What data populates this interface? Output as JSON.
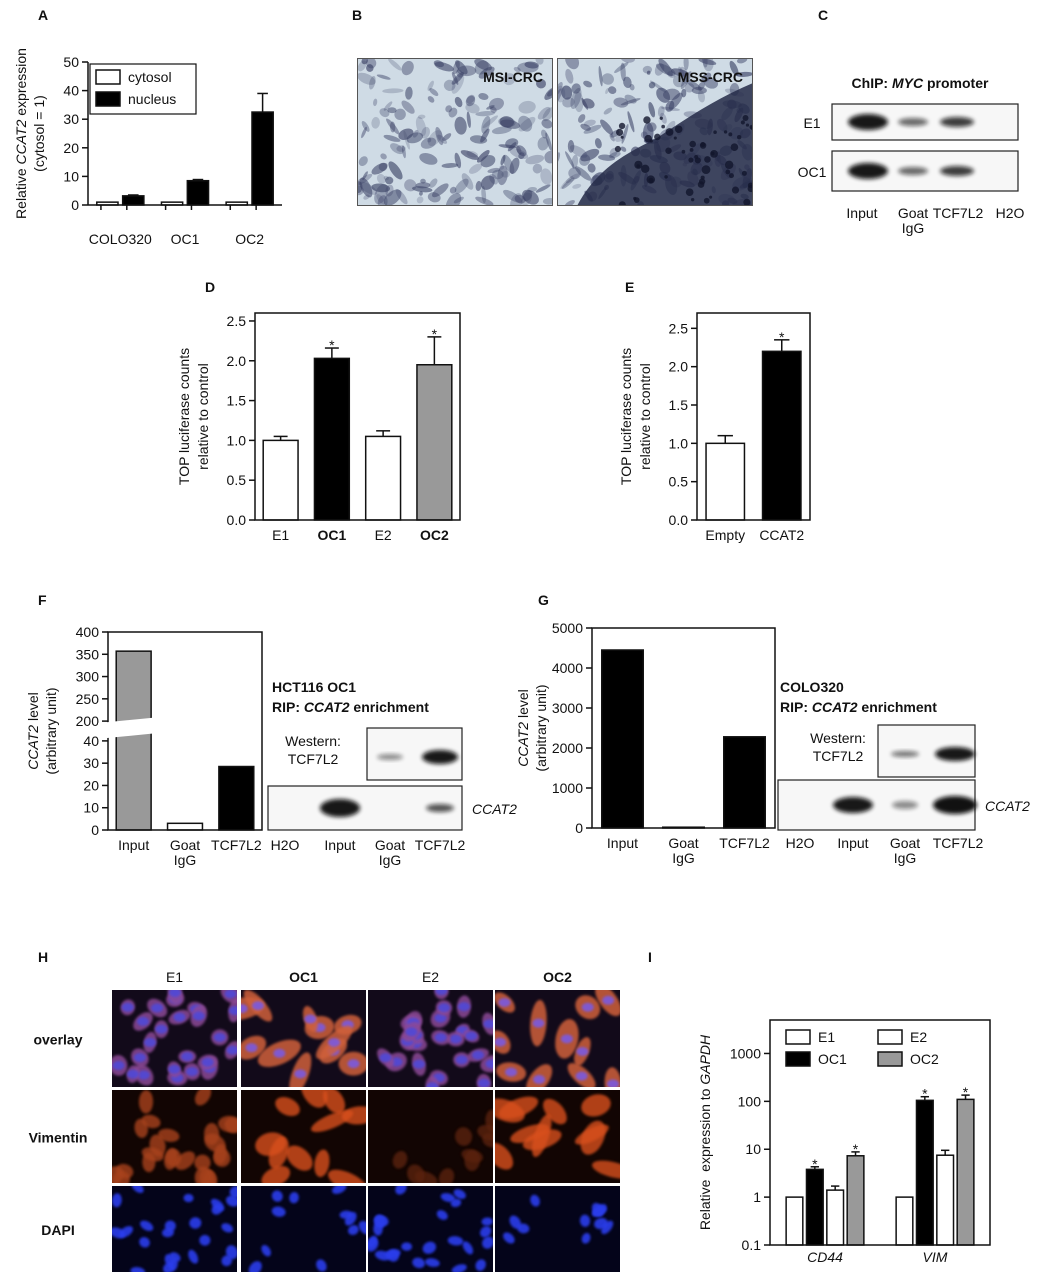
{
  "panel_labels": [
    "A",
    "B",
    "C",
    "D",
    "E",
    "F",
    "G",
    "H",
    "I"
  ],
  "chart_data": [
    {
      "type": "bar",
      "ylabel": [
        "Relative ",
        "CCAT2",
        " expression"
      ],
      "ylabel_line2": "(cytosol = 1)",
      "categories": [
        "COLO320",
        "OC1",
        "OC2"
      ],
      "series": [
        {
          "name": "cytosol",
          "color": "#ffffff",
          "values": [
            1,
            1,
            1
          ]
        },
        {
          "name": "nucleus",
          "color": "#000000",
          "values": [
            3.2,
            8.5,
            32.5
          ],
          "errors": [
            0.3,
            0.4,
            6.5
          ]
        }
      ],
      "ylim": [
        0,
        50
      ],
      "yticks": [
        0,
        10,
        20,
        30,
        40,
        50
      ],
      "legend": "upper left",
      "frame": false
    },
    {
      "type": "bar",
      "ylabel": "TOP luciferase counts",
      "ylabel_line2": "relative to control",
      "categories": [
        "E1",
        "OC1",
        "E2",
        "OC2"
      ],
      "values": [
        1.0,
        2.03,
        1.05,
        1.95
      ],
      "errors": [
        0.05,
        0.13,
        0.07,
        0.35
      ],
      "colors": [
        "#ffffff",
        "#000000",
        "#ffffff",
        "#999999"
      ],
      "annotations": [
        null,
        "*",
        null,
        "*"
      ],
      "ylim": [
        0,
        2.6
      ],
      "yticks": [
        {
          "value": 0,
          "label": "0.0"
        },
        0.5,
        {
          "value": 1,
          "label": "1.0"
        },
        1.5,
        {
          "value": 2,
          "label": "2.0"
        },
        2.5
      ],
      "frame": true
    },
    {
      "type": "bar",
      "ylabel": "TOP luciferase counts",
      "ylabel_line2": "relative to control",
      "categories": [
        "Empty",
        "CCAT2"
      ],
      "values": [
        1.0,
        2.2
      ],
      "errors": [
        0.1,
        0.15
      ],
      "colors": [
        "#ffffff",
        "#000000"
      ],
      "annotations": [
        null,
        "*"
      ],
      "ylim": [
        0,
        2.7
      ],
      "yticks": [
        {
          "value": 0,
          "label": "0.0"
        },
        0.5,
        {
          "value": 1,
          "label": "1.0"
        },
        1.5,
        {
          "value": 2,
          "label": "2.0"
        },
        2.5
      ],
      "frame": true
    },
    {
      "type": "bar",
      "ylabel": [
        "CCAT2",
        " level"
      ],
      "ylabel_line2": "(arbitrary unit)",
      "categories": [
        "Input",
        "Goat IgG",
        "TCF7L2"
      ],
      "values": [
        357,
        3,
        28.5
      ],
      "colors": [
        "#999999",
        "#ffffff",
        "#000000"
      ],
      "ylim": [
        0,
        400
      ],
      "ybreak": [
        40,
        200
      ],
      "yticks": [
        0,
        10,
        20,
        30,
        40,
        200,
        250,
        300,
        350,
        400
      ],
      "frame": true
    },
    {
      "type": "bar",
      "ylabel": [
        "CCAT2",
        " level"
      ],
      "ylabel_line2": "(arbitrary unit)",
      "categories": [
        "Input",
        "Goat IgG",
        "TCF7L2"
      ],
      "values": [
        4450,
        20,
        2280
      ],
      "color": "#000000",
      "ylim": [
        0,
        5000
      ],
      "yticks": [
        0,
        1000,
        2000,
        3000,
        4000,
        5000
      ],
      "frame": true
    },
    {
      "type": "bar",
      "log": true,
      "ylabel": [
        "Relative  expression to ",
        "GAPDH"
      ],
      "categories": [
        "CD44",
        "VIM"
      ],
      "series": [
        {
          "name": "E1",
          "color": "#ffffff",
          "values": [
            1,
            1
          ]
        },
        {
          "name": "OC1",
          "color": "#000000",
          "values": [
            3.8,
            105
          ],
          "errors": [
            0.5,
            20
          ],
          "annotations": [
            "*",
            "*"
          ]
        },
        {
          "name": "E2",
          "color": "#ffffff",
          "values": [
            1.4,
            7.5
          ],
          "errors": [
            0.3,
            2
          ]
        },
        {
          "name": "OC2",
          "color": "#999999",
          "values": [
            7.3,
            110
          ],
          "errors": [
            1.5,
            25
          ],
          "annotations": [
            "*",
            "*"
          ]
        }
      ],
      "ylim": [
        0.1,
        5000
      ],
      "yticks": [
        0.1,
        1,
        10,
        100,
        1000
      ],
      "legend": "upper left",
      "frame": true
    }
  ],
  "histology": {
    "images": [
      "MSI-CRC",
      "MSS-CRC"
    ]
  },
  "chip": {
    "title": [
      "ChIP: ",
      "MYC",
      " promoter"
    ],
    "rows": [
      "E1",
      "OC1"
    ],
    "lanes": [
      "Input",
      "Goat IgG",
      "TCF7L2",
      "H2O"
    ]
  },
  "rip_f": {
    "title": "HCT116 OC1",
    "subtitle": [
      "RIP: ",
      "CCAT2",
      " enrichment"
    ],
    "western": [
      "Western:",
      "TCF7L2"
    ],
    "blot_label": "CCAT2",
    "lanes": [
      "H2O",
      "Input",
      "Goat IgG",
      "TCF7L2"
    ]
  },
  "rip_g": {
    "title": "COLO320",
    "subtitle": [
      "RIP: ",
      "CCAT2",
      " enrichment"
    ],
    "western": [
      "Western:",
      "TCF7L2"
    ],
    "blot_label": "CCAT2",
    "lanes": [
      "H2O",
      "Input",
      "Goat IgG",
      "TCF7L2"
    ]
  },
  "microscopy": {
    "columns": [
      "E1",
      "OC1",
      "E2",
      "OC2"
    ],
    "rows": [
      "overlay",
      "Vimentin",
      "DAPI"
    ]
  }
}
